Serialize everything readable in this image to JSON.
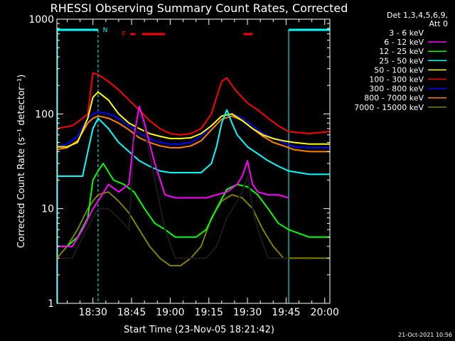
{
  "chart_data": {
    "type": "line",
    "title": "RHESSI Observing Summary Count Rates, Corrected",
    "xlabel": "Start Time (23-Nov-05 18:21:42)",
    "ylabel": "Corrected Count Rate (s⁻¹ detector⁻¹)",
    "yscale": "log",
    "ylim": [
      1,
      1000
    ],
    "xlim_minutes": [
      1096,
      1202
    ],
    "xticks": [
      {
        "label": "18:30",
        "value": 1110
      },
      {
        "label": "18:45",
        "value": 1125
      },
      {
        "label": "19:00",
        "value": 1140
      },
      {
        "label": "19:15",
        "value": 1155
      },
      {
        "label": "19:30",
        "value": 1170
      },
      {
        "label": "19:45",
        "value": 1185
      },
      {
        "label": "20:00",
        "value": 1200
      }
    ],
    "yticks": [
      {
        "label": "1",
        "value": 1
      },
      {
        "label": "10",
        "value": 10
      },
      {
        "label": "100",
        "value": 100
      },
      {
        "label": "1000",
        "value": 1000
      }
    ],
    "legend_header": [
      "Det 1,3,4,5,6,9,",
      "Att 0"
    ],
    "legend_position": "right",
    "flags": {
      "night_label": "N",
      "flare_label": "F",
      "night_color": "#00ffff",
      "flare_color": "#ff0000",
      "night_bars": [
        [
          1096,
          1112
        ],
        [
          1186,
          1202
        ]
      ],
      "night_dashes": [
        1112,
        1186
      ],
      "flare_bars": [
        [
          1124.5,
          1126.5
        ],
        [
          1129,
          1138
        ],
        [
          1168.5,
          1172
        ]
      ]
    },
    "series": [
      {
        "name": "3 - 6 keV",
        "color": "#000000",
        "x": [
          1096,
          1102,
          1106,
          1110,
          1112,
          1116,
          1120,
          1124,
          1126,
          1128,
          1130,
          1134,
          1138,
          1142,
          1146,
          1150,
          1154,
          1158,
          1162,
          1166,
          1168,
          1170,
          1172,
          1174,
          1178,
          1182,
          1186
        ],
        "y": [
          3,
          3,
          5,
          8,
          10,
          10,
          8,
          6,
          50,
          100,
          70,
          20,
          6,
          3,
          3,
          3,
          3,
          4,
          8,
          12,
          15,
          22,
          10,
          6,
          3,
          3,
          3
        ]
      },
      {
        "name": "6 - 12 keV",
        "color": "#ff00ff",
        "x": [
          1096,
          1102,
          1106,
          1110,
          1112,
          1116,
          1120,
          1124,
          1126,
          1128,
          1130,
          1134,
          1138,
          1142,
          1146,
          1150,
          1154,
          1158,
          1162,
          1166,
          1168,
          1170,
          1172,
          1174,
          1178,
          1182,
          1186
        ],
        "y": [
          4,
          4,
          6,
          10,
          12,
          18,
          15,
          18,
          60,
          120,
          80,
          30,
          14,
          13,
          13,
          13,
          13,
          14,
          15,
          18,
          22,
          32,
          18,
          15,
          14,
          14,
          13
        ]
      },
      {
        "name": "12 - 25 keV",
        "color": "#00ff00",
        "x": [
          1096,
          1100,
          1104,
          1108,
          1110,
          1112,
          1114,
          1118,
          1122,
          1126,
          1130,
          1134,
          1138,
          1142,
          1146,
          1150,
          1154,
          1158,
          1162,
          1166,
          1170,
          1174,
          1178,
          1182,
          1186,
          1194,
          1202
        ],
        "y": [
          4,
          4,
          5,
          8,
          20,
          25,
          30,
          20,
          18,
          15,
          10,
          7,
          6,
          5,
          5,
          5,
          6,
          10,
          16,
          18,
          17,
          14,
          10,
          7,
          6,
          5,
          5
        ]
      },
      {
        "name": "25 - 50 keV",
        "color": "#00ffff",
        "x": [
          1096,
          1102,
          1106,
          1108,
          1110,
          1112,
          1116,
          1120,
          1124,
          1128,
          1132,
          1136,
          1140,
          1144,
          1148,
          1152,
          1156,
          1158,
          1160,
          1162,
          1164,
          1166,
          1170,
          1174,
          1178,
          1182,
          1186,
          1194,
          1202
        ],
        "y": [
          22,
          22,
          22,
          40,
          70,
          90,
          70,
          50,
          40,
          32,
          28,
          25,
          24,
          24,
          24,
          24,
          30,
          45,
          80,
          110,
          80,
          60,
          45,
          38,
          32,
          28,
          25,
          23,
          23
        ]
      },
      {
        "name": "50 - 100 keV",
        "color": "#ffff00",
        "x": [
          1096,
          1100,
          1104,
          1108,
          1110,
          1112,
          1116,
          1120,
          1124,
          1128,
          1132,
          1136,
          1140,
          1144,
          1148,
          1152,
          1156,
          1160,
          1164,
          1168,
          1172,
          1176,
          1180,
          1184,
          1188,
          1194,
          1202
        ],
        "y": [
          45,
          45,
          50,
          90,
          150,
          170,
          140,
          100,
          80,
          70,
          62,
          58,
          55,
          55,
          56,
          62,
          75,
          95,
          100,
          85,
          70,
          60,
          55,
          52,
          50,
          48,
          48
        ]
      },
      {
        "name": "100 - 300 keV",
        "color": "#ff0000",
        "x": [
          1096,
          1102,
          1106,
          1108,
          1110,
          1112,
          1116,
          1120,
          1124,
          1128,
          1132,
          1136,
          1140,
          1144,
          1148,
          1152,
          1156,
          1158,
          1160,
          1162,
          1164,
          1166,
          1170,
          1174,
          1178,
          1182,
          1186,
          1194,
          1202
        ],
        "y": [
          70,
          75,
          90,
          100,
          270,
          260,
          220,
          180,
          140,
          110,
          85,
          70,
          62,
          60,
          62,
          70,
          100,
          150,
          220,
          240,
          200,
          170,
          130,
          110,
          90,
          75,
          65,
          62,
          65
        ]
      },
      {
        "name": "300 - 800 keV",
        "color": "#0000ff",
        "x": [
          1096,
          1100,
          1104,
          1108,
          1110,
          1112,
          1116,
          1120,
          1124,
          1128,
          1132,
          1136,
          1140,
          1144,
          1148,
          1152,
          1156,
          1160,
          1164,
          1168,
          1172,
          1176,
          1180,
          1184,
          1188,
          1194,
          1202
        ],
        "y": [
          45,
          48,
          58,
          90,
          100,
          105,
          100,
          90,
          75,
          62,
          55,
          50,
          48,
          48,
          50,
          58,
          75,
          95,
          100,
          90,
          75,
          62,
          55,
          50,
          45,
          44,
          44
        ]
      },
      {
        "name": "800 - 7000 keV",
        "color": "#ff8000",
        "x": [
          1096,
          1100,
          1104,
          1108,
          1110,
          1112,
          1116,
          1120,
          1124,
          1128,
          1132,
          1136,
          1140,
          1144,
          1148,
          1152,
          1156,
          1160,
          1164,
          1168,
          1172,
          1176,
          1180,
          1184,
          1188,
          1194,
          1202
        ],
        "y": [
          42,
          44,
          52,
          80,
          90,
          95,
          90,
          80,
          68,
          56,
          50,
          46,
          44,
          44,
          46,
          52,
          68,
          88,
          95,
          85,
          70,
          58,
          50,
          46,
          42,
          40,
          40
        ]
      },
      {
        "name": "7000 - 15000 keV",
        "color": "#808000",
        "x": [
          1096,
          1100,
          1104,
          1108,
          1110,
          1112,
          1116,
          1120,
          1124,
          1128,
          1132,
          1136,
          1140,
          1144,
          1148,
          1152,
          1156,
          1160,
          1164,
          1168,
          1172,
          1176,
          1180,
          1184,
          1188,
          1194,
          1202
        ],
        "y": [
          3,
          4,
          6,
          10,
          12,
          14,
          15,
          12,
          9,
          6,
          4,
          3,
          2.5,
          2.5,
          3,
          4,
          8,
          12,
          14,
          13,
          10,
          6,
          4,
          3,
          3,
          3,
          3
        ]
      }
    ]
  },
  "footer_date": "21-Oct-2021 10:56"
}
